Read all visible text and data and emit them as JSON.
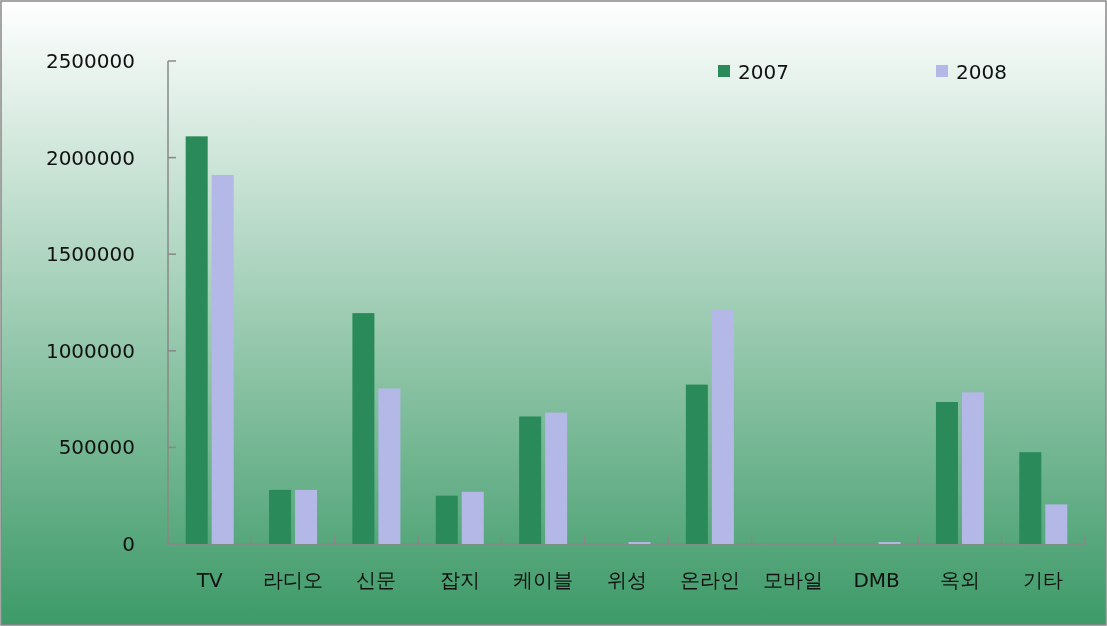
{
  "chart_data": {
    "type": "bar",
    "categories": [
      "TV",
      "라디오",
      "신문",
      "잡지",
      "케이블",
      "위성",
      "온라인",
      "모바일",
      "DMB",
      "옥외",
      "기타"
    ],
    "series": [
      {
        "name": "2007",
        "color": "#2a8a5a",
        "values": [
          2110000,
          280000,
          1195000,
          250000,
          660000,
          0,
          825000,
          0,
          0,
          735000,
          475000
        ]
      },
      {
        "name": "2008",
        "color": "#b4b8e6",
        "values": [
          1910000,
          280000,
          805000,
          270000,
          680000,
          10000,
          1215000,
          0,
          10000,
          785000,
          205000
        ]
      }
    ],
    "ylim": [
      0,
      2500000
    ],
    "yticks": [
      0,
      500000,
      1000000,
      1500000,
      2000000,
      2500000
    ],
    "grid": false,
    "legend": "top right"
  }
}
